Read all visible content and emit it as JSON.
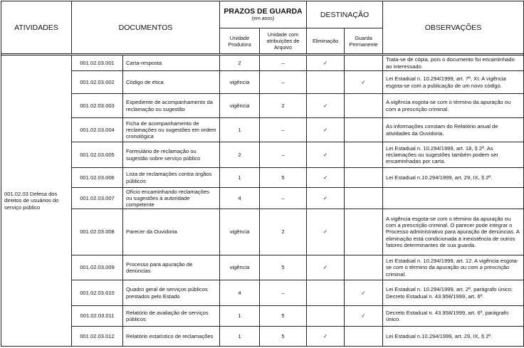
{
  "header": {
    "atividades": "ATIVIDADES",
    "documentos": "DOCUMENTOS",
    "prazos": "PRAZOS DE GUARDA",
    "prazos_sub": "(em anos)",
    "unidade_produtora": "Unidade Produtora",
    "unidade_arquivo": "Unidade com atribuições de Arquivo",
    "destinacao": "DESTINAÇÃO",
    "eliminacao": "Eliminação",
    "guarda_permanente": "Guarda Permanente",
    "observacoes": "OBSERVAÇÕES"
  },
  "atividade": "001.02.03 Defesa dos direitos de usuários do serviço público",
  "rows": [
    {
      "code": "001.02.03.001",
      "doc": "Carta-resposta",
      "prod": "2",
      "arq": "–",
      "elim": "✓",
      "guarda": "",
      "obs": "Trata-se de cópia, pois o documento foi encaminhado ao interessado."
    },
    {
      "code": "001.02.03.002",
      "doc": "Código de ética",
      "prod": "vigência",
      "arq": "–",
      "elim": "",
      "guarda": "✓",
      "obs": "Lei Estadual n. 10.294/1999, art. 7º, XI. A vigência esgota-se com a publicação de um novo código."
    },
    {
      "code": "001.02.03.003",
      "doc": "Expediente de acompanhamento da reclamação ou sugestão",
      "prod": "vigência",
      "arq": "2",
      "elim": "✓",
      "guarda": "",
      "obs": "A vigência esgota-se com o término da apuração ou com a prescrição criminal."
    },
    {
      "code": "001.02.03.004",
      "doc": "Ficha de acompanhamento de reclamações ou sugestões em ordem cronológica",
      "prod": "1",
      "arq": "–",
      "elim": "✓",
      "guarda": "",
      "obs": "As informações constam do Relatório anual de atividades da Ouvidoria."
    },
    {
      "code": "001.02.03.005",
      "doc": "Formulário de reclamação ou sugestão sobre serviço público",
      "prod": "2",
      "arq": "–",
      "elim": "✓",
      "guarda": "",
      "obs": "Lei Estadual n. 10.294/1999, art. 18, § 2º. As reclamações ou sugestões também podem ser encaminhadas por carta."
    },
    {
      "code": "001.02.03.006",
      "doc": "Lista de reclamações contra órgãos públicos",
      "prod": "1",
      "arq": "5",
      "elim": "✓",
      "guarda": "",
      "obs": "Lei Estadual n.10.294/1999, art. 29, IX, § 2º."
    },
    {
      "code": "001.02.03.007",
      "doc": "Ofício encaminhando reclamações ou sugestões à autoridade competente",
      "prod": "4",
      "arq": "–",
      "elim": "✓",
      "guarda": "",
      "obs": ""
    },
    {
      "code": "001.02.03.008",
      "doc": "Parecer da Ouvidoria",
      "prod": "vigência",
      "arq": "2",
      "elim": "✓",
      "guarda": "",
      "obs": "A vigência esgota-se com o término da apuração ou com a prescrição criminal. O parecer pode integrar o Processo administrativo para apuração de denúncias. A eliminação está condicionada à inexistência de outros fatores determinantes de sua guarda."
    },
    {
      "code": "001.02.03.009",
      "doc": "Processo para apuração de denúncias",
      "prod": "vigência",
      "arq": "5",
      "elim": "✓",
      "guarda": "",
      "obs": "Lei Estadual n. 10.294/1999, art. 12. A vigência esgota-se com o término da apuração ou com a prescrição criminal."
    },
    {
      "code": "001.02.03.010",
      "doc": "Quadro geral de serviços públicos prestados pelo Estado",
      "prod": "4",
      "arq": "–",
      "elim": "",
      "guarda": "✓",
      "obs": "Lei Estadual n. 10.294/1999, art. 2º, parágrafo único; Decreto Estadual n. 43.958/1999, art. 6º."
    },
    {
      "code": "001.02.03.011",
      "doc": "Relatório de avaliação de serviços públicos",
      "prod": "1",
      "arq": "5",
      "elim": "",
      "guarda": "✓",
      "obs": "Decreto Estadual n. 43.958/1999, art. 6º, parágrafo único."
    },
    {
      "code": "001.02.03.012",
      "doc": "Relatório estatístico de reclamações",
      "prod": "1",
      "arq": "5",
      "elim": "✓",
      "guarda": "",
      "obs": "Lei Estadual n.10.294/1999, art. 29, IX, § 2º."
    }
  ]
}
